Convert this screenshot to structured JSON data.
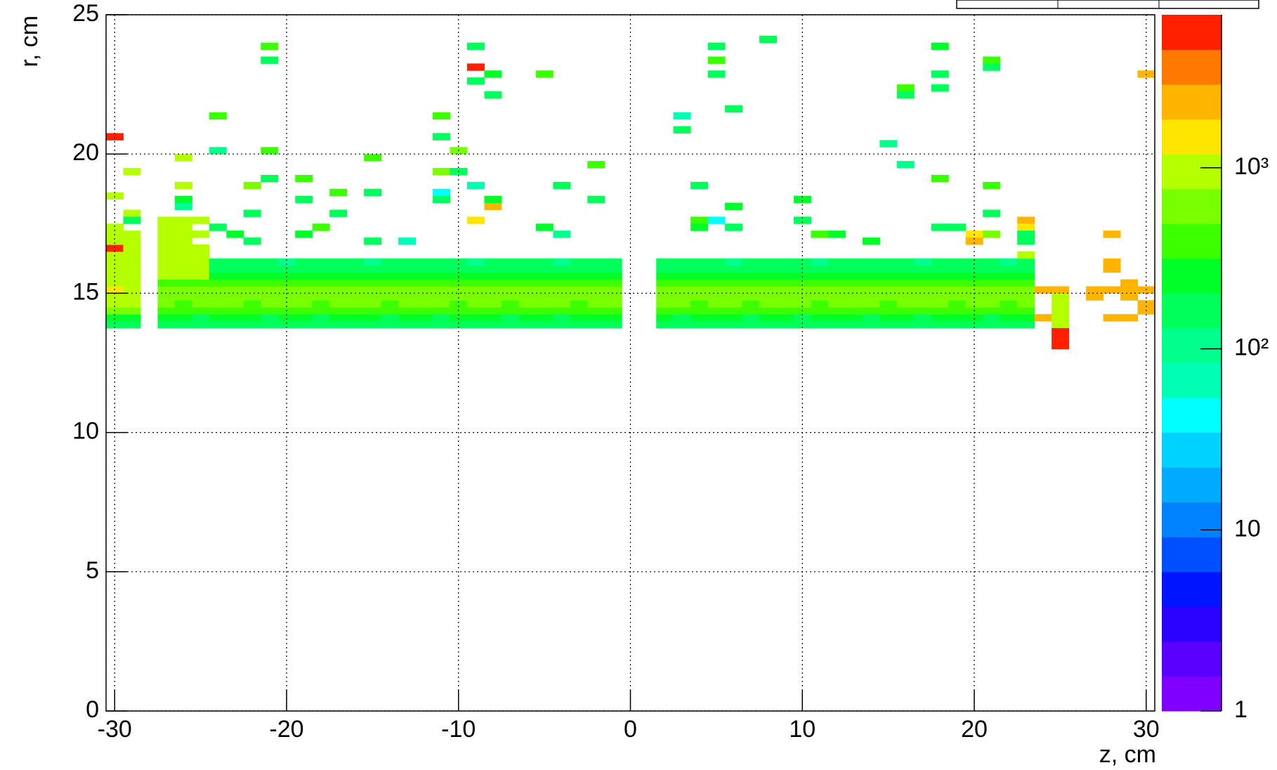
{
  "chart_data": {
    "type": "heatmap",
    "xlabel": "z, cm",
    "ylabel": "r, cm",
    "xlim": [
      -30.5,
      30.5
    ],
    "ylim": [
      0,
      25
    ],
    "xticks": [
      -30,
      -20,
      -10,
      0,
      10,
      20,
      30
    ],
    "yticks": [
      0,
      5,
      10,
      15,
      20,
      25
    ],
    "grid": true,
    "zlog": true,
    "zlim": [
      1,
      7000
    ],
    "zticks": [
      1,
      10,
      {
        "value": 100,
        "label": "10²"
      },
      {
        "value": 1000,
        "label": "10³"
      }
    ],
    "xbin_width": 1,
    "ybin_width": 0.25,
    "palette": [
      "#8000ff",
      "#5a00ff",
      "#2a00ff",
      "#0014ff",
      "#0050ff",
      "#0082ff",
      "#00aaff",
      "#00d2ff",
      "#00ffff",
      "#00ffb4",
      "#00ff8c",
      "#00ff5a",
      "#00ff28",
      "#3cff00",
      "#78ff00",
      "#b4ff00",
      "#ffe600",
      "#ffb400",
      "#ff7800",
      "#ff2000"
    ],
    "matrix": {
      "x": [
        -30,
        -29,
        -28,
        -27,
        -26,
        -25,
        -24,
        -23,
        -22,
        -21,
        -20,
        -19,
        -18,
        -17,
        -16,
        -15,
        -14,
        -13,
        -12,
        -11,
        -10,
        -9,
        -8,
        -7,
        -6,
        -5,
        -4,
        -3,
        -2,
        -1,
        0,
        1,
        2,
        3,
        4,
        5,
        6,
        7,
        8,
        9,
        10,
        11,
        12,
        13,
        14,
        15,
        16,
        17,
        18,
        19,
        20,
        21,
        22,
        23
      ],
      "y": [
        13.875,
        14.125,
        14.375,
        14.625,
        14.875,
        15.125,
        15.375,
        15.625,
        15.875,
        16.125
      ],
      "z": [
        [
          200,
          190,
          null,
          170,
          160,
          150,
          160,
          170,
          160,
          150,
          160,
          170,
          160,
          150,
          160,
          170,
          160,
          150,
          160,
          170,
          160,
          150,
          160,
          170,
          160,
          150,
          160,
          170,
          160,
          150,
          null,
          null,
          160,
          150,
          160,
          170,
          160,
          150,
          160,
          170,
          160,
          150,
          160,
          170,
          160,
          150,
          160,
          170,
          160,
          150,
          160,
          170,
          160,
          150
        ],
        [
          250,
          240,
          null,
          220,
          210,
          200,
          220,
          230,
          210,
          200,
          220,
          210,
          200,
          220,
          230,
          210,
          200,
          220,
          210,
          200,
          220,
          230,
          210,
          200,
          220,
          210,
          200,
          220,
          230,
          210,
          null,
          null,
          210,
          200,
          220,
          230,
          210,
          200,
          220,
          210,
          200,
          220,
          230,
          210,
          200,
          220,
          210,
          200,
          220,
          230,
          210,
          200,
          220,
          210
        ],
        [
          700,
          650,
          null,
          450,
          420,
          400,
          380,
          400,
          420,
          450,
          400,
          380,
          420,
          400,
          450,
          420,
          400,
          380,
          400,
          420,
          450,
          400,
          380,
          420,
          400,
          450,
          420,
          400,
          380,
          400,
          null,
          null,
          400,
          420,
          450,
          400,
          380,
          420,
          400,
          450,
          420,
          400,
          380,
          400,
          420,
          450,
          400,
          380,
          420,
          400,
          450,
          420,
          400,
          380
        ],
        [
          900,
          850,
          null,
          520,
          480,
          500,
          550,
          500,
          480,
          520,
          500,
          550,
          480,
          500,
          520,
          500,
          480,
          550,
          500,
          520,
          480,
          500,
          550,
          480,
          500,
          520,
          500,
          480,
          550,
          500,
          null,
          null,
          500,
          520,
          480,
          550,
          500,
          480,
          520,
          500,
          550,
          480,
          500,
          520,
          500,
          480,
          550,
          500,
          520,
          480,
          500,
          550,
          480,
          500
        ],
        [
          1100,
          1000,
          null,
          650,
          700,
          600,
          650,
          700,
          650,
          600,
          700,
          650,
          600,
          650,
          700,
          650,
          600,
          700,
          650,
          600,
          650,
          700,
          650,
          600,
          700,
          650,
          600,
          650,
          700,
          650,
          null,
          null,
          650,
          700,
          600,
          650,
          700,
          650,
          600,
          700,
          650,
          600,
          650,
          700,
          650,
          600,
          700,
          650,
          600,
          650,
          700,
          650,
          600,
          700
        ],
        [
          1200,
          1100,
          null,
          600,
          650,
          700,
          650,
          600,
          650,
          700,
          650,
          600,
          650,
          700,
          650,
          600,
          650,
          700,
          650,
          600,
          650,
          700,
          650,
          600,
          650,
          700,
          650,
          600,
          650,
          700,
          null,
          null,
          600,
          650,
          700,
          650,
          600,
          650,
          700,
          650,
          600,
          650,
          700,
          650,
          600,
          650,
          700,
          650,
          600,
          650,
          700,
          650,
          600,
          650
        ],
        [
          1100,
          1000,
          null,
          450,
          420,
          480,
          450,
          400,
          450,
          480,
          420,
          450,
          400,
          480,
          450,
          420,
          450,
          480,
          400,
          450,
          420,
          480,
          450,
          400,
          450,
          480,
          420,
          450,
          400,
          480,
          null,
          null,
          450,
          420,
          480,
          450,
          400,
          450,
          480,
          420,
          450,
          400,
          480,
          450,
          420,
          450,
          480,
          400,
          450,
          420,
          480,
          450,
          400,
          450
        ],
        [
          1000,
          900,
          null,
          1000,
          950,
          1000,
          250,
          220,
          250,
          270,
          230,
          250,
          220,
          270,
          250,
          230,
          250,
          270,
          220,
          250,
          230,
          270,
          250,
          220,
          250,
          270,
          230,
          250,
          220,
          270,
          null,
          null,
          250,
          230,
          270,
          250,
          220,
          250,
          270,
          230,
          250,
          220,
          270,
          250,
          230,
          250,
          270,
          220,
          250,
          230,
          270,
          250,
          220,
          250
        ],
        [
          1000,
          950,
          null,
          950,
          1000,
          900,
          180,
          160,
          180,
          190,
          170,
          180,
          160,
          190,
          180,
          170,
          180,
          190,
          160,
          180,
          170,
          190,
          180,
          160,
          180,
          190,
          170,
          180,
          160,
          190,
          null,
          null,
          180,
          170,
          190,
          180,
          160,
          180,
          190,
          170,
          180,
          160,
          190,
          180,
          170,
          180,
          190,
          160,
          180,
          170,
          190,
          180,
          160,
          180
        ],
        [
          1050,
          950,
          null,
          1000,
          1050,
          950,
          150,
          140,
          160,
          150,
          130,
          150,
          160,
          140,
          150,
          130,
          160,
          150,
          140,
          150,
          160,
          130,
          150,
          140,
          160,
          150,
          130,
          150,
          160,
          140,
          null,
          null,
          150,
          140,
          160,
          150,
          130,
          150,
          160,
          140,
          150,
          130,
          160,
          150,
          140,
          150,
          160,
          130,
          150,
          140,
          160,
          150,
          130,
          150
        ]
      ]
    },
    "cells": {
      "x": [
        -30,
        -29,
        -30,
        -29,
        -30,
        -29,
        -30,
        -29,
        -30,
        -27,
        -26,
        -25,
        -27,
        -26,
        -25,
        -27,
        -26,
        -27,
        -26,
        -25,
        -27,
        -26,
        -27,
        -26,
        -25,
        -30,
        -30,
        -29,
        -29,
        -29,
        -26,
        -26,
        -26,
        -26,
        -24,
        -24,
        -24,
        -23,
        -22,
        -21,
        -21,
        -21,
        -21,
        -22,
        -22,
        -19,
        -19,
        -19,
        -18,
        -17,
        -17,
        -15,
        -15,
        -15,
        -13,
        -11,
        -11,
        -11,
        -11,
        -11,
        -10,
        -10,
        -9,
        -9,
        -9,
        -9,
        -9,
        -8,
        -8,
        -8,
        -8,
        -5,
        -4,
        -4,
        -2,
        -2,
        -5,
        3,
        3,
        4,
        4,
        4,
        5,
        5,
        5,
        5,
        6,
        6,
        6,
        8,
        10,
        10,
        11,
        12,
        14,
        15,
        16,
        16,
        16,
        18,
        18,
        18,
        18,
        18,
        20,
        20,
        21,
        21,
        21,
        21,
        21,
        19,
        23,
        23,
        23,
        23,
        23,
        24,
        24,
        25,
        25,
        25,
        25,
        25,
        25,
        25,
        25,
        25,
        27,
        27,
        28,
        28,
        28,
        28,
        28,
        29,
        29,
        29,
        29,
        30,
        30,
        30,
        30
      ],
      "y": [
        16.375,
        16.375,
        16.625,
        16.625,
        16.875,
        16.875,
        17.125,
        17.125,
        17.375,
        16.375,
        16.375,
        16.375,
        16.625,
        16.625,
        16.625,
        16.875,
        16.875,
        17.125,
        17.125,
        17.125,
        17.375,
        17.375,
        17.625,
        17.625,
        17.625,
        18.5,
        20.625,
        19.375,
        17.875,
        17.625,
        19.875,
        18.875,
        18.375,
        18.125,
        21.375,
        20.125,
        17.375,
        17.125,
        16.875,
        23.875,
        23.375,
        20.125,
        19.125,
        18.875,
        17.875,
        19.125,
        18.375,
        17.125,
        17.375,
        18.625,
        17.875,
        19.875,
        18.625,
        16.875,
        16.875,
        21.375,
        20.625,
        18.625,
        18.375,
        19.375,
        19.375,
        20.125,
        23.875,
        23.125,
        22.625,
        17.625,
        18.875,
        22.875,
        22.125,
        18.125,
        18.375,
        22.875,
        18.875,
        17.125,
        19.625,
        18.375,
        17.375,
        21.375,
        20.875,
        18.875,
        17.625,
        17.375,
        17.625,
        23.875,
        23.375,
        22.875,
        21.625,
        18.125,
        17.375,
        24.125,
        18.375,
        17.625,
        17.125,
        17.125,
        16.875,
        20.375,
        22.375,
        22.125,
        19.625,
        23.875,
        22.875,
        22.375,
        19.125,
        17.375,
        17.125,
        16.875,
        23.375,
        23.125,
        18.875,
        17.875,
        17.125,
        17.375,
        17.625,
        17.375,
        17.125,
        16.875,
        16.375,
        15.125,
        14.125,
        15.125,
        14.875,
        14.625,
        14.375,
        14.125,
        13.875,
        13.625,
        13.375,
        13.125,
        15.125,
        14.875,
        15.125,
        17.125,
        16.125,
        15.875,
        14.125,
        15.375,
        15.125,
        14.875,
        14.125,
        15.125,
        14.625,
        14.375,
        22.875
      ],
      "values": [
        1000,
        1000,
        4500,
        1100,
        1000,
        1000,
        900,
        950,
        1000,
        1000,
        1050,
        1000,
        1100,
        1000,
        1000,
        1000,
        1050,
        1100,
        1000,
        1000,
        1000,
        1100,
        1000,
        1000,
        1000,
        900,
        5500,
        1000,
        900,
        150,
        1000,
        900,
        250,
        120,
        400,
        130,
        200,
        300,
        200,
        400,
        150,
        450,
        160,
        500,
        160,
        400,
        200,
        300,
        400,
        350,
        170,
        450,
        200,
        150,
        60,
        400,
        160,
        50,
        180,
        500,
        180,
        500,
        180,
        4500,
        150,
        1200,
        60,
        300,
        160,
        2500,
        250,
        350,
        200,
        120,
        450,
        160,
        300,
        60,
        180,
        170,
        350,
        300,
        40,
        150,
        400,
        170,
        160,
        300,
        170,
        160,
        300,
        160,
        350,
        250,
        300,
        100,
        400,
        160,
        120,
        300,
        160,
        170,
        400,
        180,
        1200,
        2500,
        400,
        170,
        350,
        200,
        500,
        170,
        2000,
        1500,
        180,
        180,
        1000,
        2500,
        2500,
        2500,
        1000,
        1000,
        1000,
        1000,
        1000,
        5500,
        5500,
        5500,
        2500,
        2500,
        2500,
        2500,
        2500,
        2500,
        2500,
        2500,
        2500,
        2500,
        2500,
        2500,
        2500,
        2500,
        2500
      ]
    }
  }
}
